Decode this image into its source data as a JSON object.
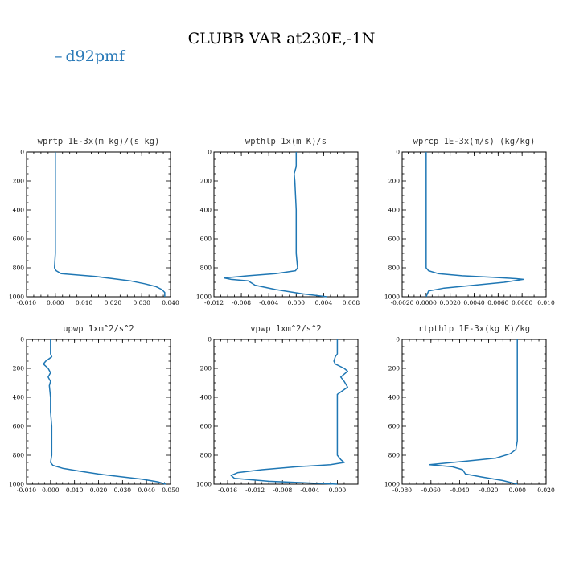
{
  "figure": {
    "title": "CLUBB VAR at230E,-1N",
    "legend": {
      "label": "d92pmf",
      "marker": "–",
      "color": "#1f77b4"
    }
  },
  "chart_data": [
    {
      "type": "line",
      "title": "wprtp  1E-3x(m kg)/(s kg)",
      "xlim": [
        -0.01,
        0.04
      ],
      "ylim": [
        1000,
        0
      ],
      "xticks": [
        "-0.010",
        "0.000",
        "0.010",
        "0.020",
        "0.030",
        "0.040"
      ],
      "yticks": [
        "0",
        "200",
        "400",
        "600",
        "800",
        "1000"
      ],
      "series": [
        {
          "name": "d92pmf",
          "color": "#1f77b4",
          "x": [
            0.0,
            0.0,
            0.0,
            0.0,
            0.0,
            0.0,
            0.0,
            0.0,
            -0.0003,
            0.0003,
            0.002,
            0.008,
            0.014,
            0.02,
            0.026,
            0.031,
            0.035,
            0.037,
            0.038,
            0.038
          ],
          "y": [
            0,
            100,
            200,
            300,
            400,
            500,
            600,
            700,
            800,
            820,
            840,
            850,
            860,
            875,
            890,
            910,
            930,
            950,
            970,
            1000
          ]
        }
      ]
    },
    {
      "type": "line",
      "title": "wpthlp  1x(m K)/s",
      "xlim": [
        -0.012,
        0.009
      ],
      "ylim": [
        1000,
        0
      ],
      "xticks": [
        "-0.012",
        "-0.008",
        "-0.004",
        "0.000",
        "0.004",
        "0.008"
      ],
      "yticks": [
        "0",
        "200",
        "400",
        "600",
        "800",
        "1000"
      ],
      "series": [
        {
          "name": "d92pmf",
          "color": "#1f77b4",
          "x": [
            0.0,
            0.0,
            -0.0003,
            -0.0002,
            -0.0001,
            0.0,
            0.0,
            0.0,
            0.0,
            0.0002,
            -0.0001,
            -0.003,
            -0.007,
            -0.0105,
            -0.0095,
            -0.007,
            -0.006,
            -0.003,
            0.001,
            0.0045
          ],
          "y": [
            0,
            100,
            150,
            200,
            300,
            400,
            500,
            600,
            700,
            800,
            820,
            840,
            855,
            870,
            880,
            890,
            920,
            950,
            980,
            1000
          ]
        }
      ]
    },
    {
      "type": "line",
      "title": "wprcp  1E-3x(m/s) (kg/kg)",
      "xlim": [
        -0.002,
        0.01
      ],
      "ylim": [
        1000,
        0
      ],
      "xticks": [
        "-0.0020",
        "0.0000",
        "0.0020",
        "0.0040",
        "0.0060",
        "0.0080",
        "0.010"
      ],
      "yticks": [
        "0",
        "200",
        "400",
        "600",
        "800",
        "1000"
      ],
      "series": [
        {
          "name": "d92pmf",
          "color": "#1f77b4",
          "x": [
            0.0,
            0.0,
            0.0,
            0.0,
            0.0,
            0.0,
            0.0,
            0.0,
            0.0,
            0.0002,
            0.001,
            0.003,
            0.0055,
            0.0075,
            0.0081,
            0.0065,
            0.004,
            0.0015,
            0.0002,
            0.0
          ],
          "y": [
            0,
            100,
            200,
            300,
            400,
            500,
            600,
            700,
            800,
            820,
            840,
            855,
            865,
            875,
            880,
            900,
            920,
            940,
            960,
            1000
          ]
        }
      ]
    },
    {
      "type": "line",
      "title": "upwp   1xm^2/s^2",
      "xlim": [
        -0.01,
        0.05
      ],
      "ylim": [
        1000,
        0
      ],
      "xticks": [
        "-0.010",
        "0.000",
        "0.010",
        "0.020",
        "0.030",
        "0.040",
        "0.050"
      ],
      "yticks": [
        "0",
        "200",
        "400",
        "600",
        "800",
        "1000"
      ],
      "series": [
        {
          "name": "d92pmf",
          "color": "#1f77b4",
          "x": [
            0.0,
            0.0,
            0.0005,
            -0.002,
            -0.003,
            -0.001,
            0.0,
            -0.001,
            0.0,
            -0.0005,
            0.0,
            0.0,
            0.0005,
            0.0005,
            0.0005,
            0.0,
            0.001,
            0.005,
            0.012,
            0.02,
            0.03,
            0.038,
            0.045,
            0.048
          ],
          "y": [
            0,
            100,
            120,
            150,
            170,
            200,
            230,
            260,
            290,
            320,
            400,
            500,
            600,
            700,
            800,
            850,
            870,
            890,
            910,
            930,
            950,
            965,
            985,
            1000
          ]
        }
      ]
    },
    {
      "type": "line",
      "title": "vpwp   1xm^2/s^2",
      "xlim": [
        -0.018,
        0.003
      ],
      "ylim": [
        1000,
        0
      ],
      "xticks": [
        "-0.016",
        "-0.012",
        "-0.008",
        "-0.004",
        "0.000"
      ],
      "yticks": [
        "0",
        "200",
        "400",
        "600",
        "800",
        "1000"
      ],
      "series": [
        {
          "name": "d92pmf",
          "color": "#1f77b4",
          "x": [
            0.0,
            0.0,
            -0.0003,
            -0.0005,
            -0.0003,
            0.001,
            0.0015,
            0.0005,
            0.001,
            0.0015,
            0.0,
            0.0,
            0.0,
            0.0,
            0.0,
            0.0,
            0.0005,
            0.001,
            -0.001,
            -0.006,
            -0.011,
            -0.0145,
            -0.0155,
            -0.015,
            -0.01,
            0.0
          ],
          "y": [
            0,
            100,
            120,
            150,
            170,
            200,
            220,
            260,
            290,
            330,
            380,
            450,
            500,
            600,
            700,
            800,
            830,
            850,
            865,
            880,
            900,
            920,
            940,
            960,
            980,
            1000
          ]
        }
      ]
    },
    {
      "type": "line",
      "title": "rtpthlp  1E-3x(kg K)/kg",
      "xlim": [
        -0.08,
        0.02
      ],
      "ylim": [
        1000,
        0
      ],
      "xticks": [
        "-0.080",
        "-0.060",
        "-0.040",
        "-0.020",
        "0.000",
        "0.020"
      ],
      "yticks": [
        "0",
        "200",
        "400",
        "600",
        "800",
        "1000"
      ],
      "series": [
        {
          "name": "d92pmf",
          "color": "#1f77b4",
          "x": [
            0.0,
            0.0,
            0.0,
            0.0,
            0.0,
            0.0,
            0.0,
            -0.001,
            -0.005,
            -0.015,
            -0.035,
            -0.061,
            -0.045,
            -0.038,
            -0.036,
            -0.025,
            -0.01,
            0.0
          ],
          "y": [
            0,
            100,
            200,
            300,
            400,
            500,
            700,
            760,
            790,
            820,
            840,
            865,
            880,
            900,
            930,
            950,
            975,
            1000
          ]
        }
      ]
    }
  ]
}
